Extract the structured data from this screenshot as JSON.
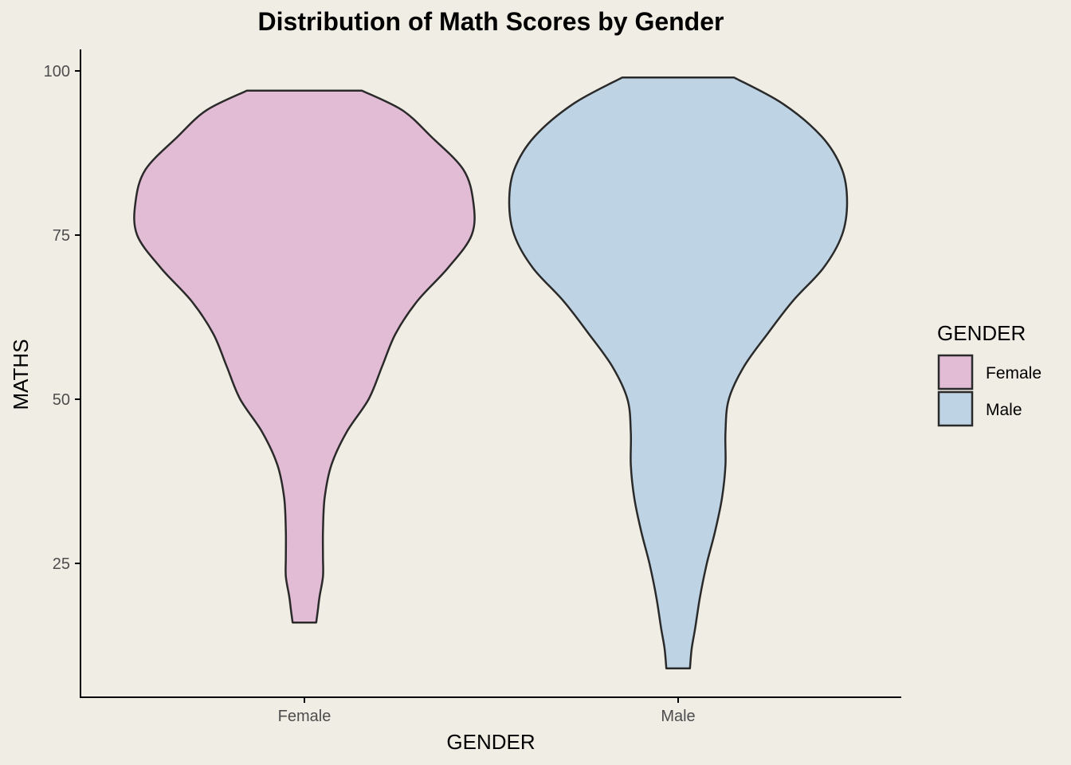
{
  "chart_data": {
    "type": "violin",
    "title": "Distribution of Math Scores by Gender",
    "xlabel": "GENDER",
    "ylabel": "MATHS",
    "categories": [
      "Female",
      "Male"
    ],
    "yticks": [
      25,
      50,
      75,
      100
    ],
    "ylim": [
      5,
      102
    ],
    "grid": false,
    "legend": {
      "title": "GENDER",
      "placement": "right",
      "entries": [
        "Female",
        "Male"
      ]
    },
    "colors": {
      "Female": "#e2bbd5",
      "Male": "#bed3e3",
      "outline": "#2a2a2a"
    },
    "series": [
      {
        "name": "Female",
        "min": 16,
        "max": 97,
        "density": [
          [
            16,
            0.07
          ],
          [
            18,
            0.08
          ],
          [
            20,
            0.09
          ],
          [
            23,
            0.11
          ],
          [
            26,
            0.11
          ],
          [
            30,
            0.11
          ],
          [
            35,
            0.12
          ],
          [
            40,
            0.16
          ],
          [
            45,
            0.25
          ],
          [
            50,
            0.38
          ],
          [
            55,
            0.46
          ],
          [
            60,
            0.54
          ],
          [
            65,
            0.67
          ],
          [
            70,
            0.85
          ],
          [
            75,
            0.99
          ],
          [
            80,
            1.0
          ],
          [
            85,
            0.94
          ],
          [
            90,
            0.75
          ],
          [
            94,
            0.58
          ],
          [
            97,
            0.34
          ]
        ]
      },
      {
        "name": "Male",
        "min": 9,
        "max": 99,
        "density": [
          [
            9,
            0.07
          ],
          [
            12,
            0.08
          ],
          [
            15,
            0.1
          ],
          [
            20,
            0.13
          ],
          [
            25,
            0.17
          ],
          [
            30,
            0.22
          ],
          [
            35,
            0.26
          ],
          [
            40,
            0.28
          ],
          [
            45,
            0.28
          ],
          [
            50,
            0.3
          ],
          [
            55,
            0.39
          ],
          [
            60,
            0.53
          ],
          [
            65,
            0.68
          ],
          [
            70,
            0.86
          ],
          [
            75,
            0.97
          ],
          [
            80,
            1.0
          ],
          [
            85,
            0.97
          ],
          [
            90,
            0.85
          ],
          [
            95,
            0.62
          ],
          [
            99,
            0.33
          ]
        ]
      }
    ]
  }
}
